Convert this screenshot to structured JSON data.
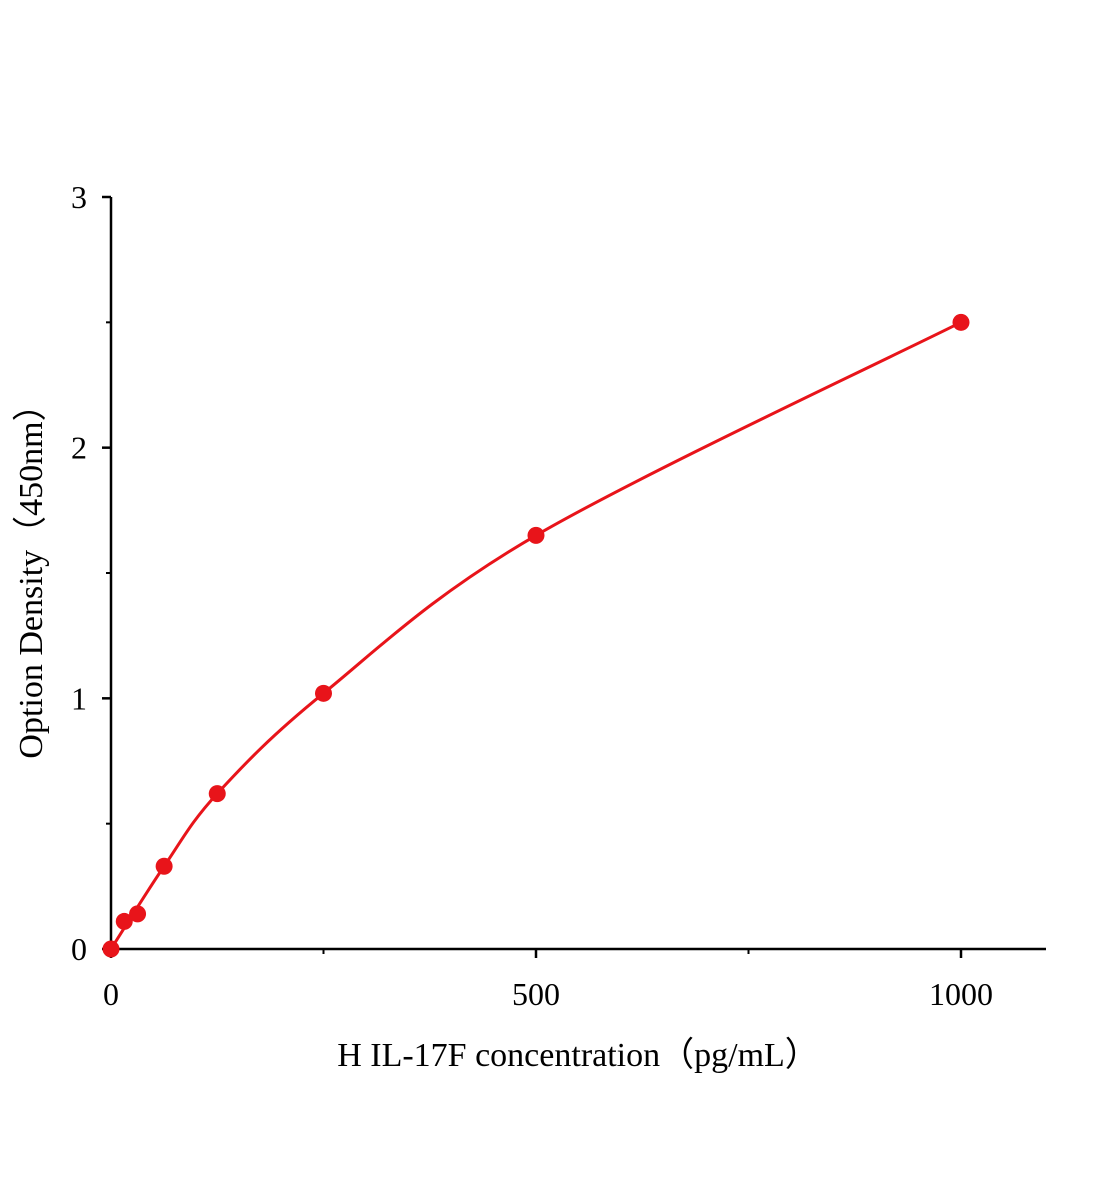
{
  "chart_data": {
    "type": "scatter",
    "title": "",
    "xlabel": "H IL-17F  concentration（pg/mL）",
    "ylabel": "Option Density（450nm）",
    "xlim": [
      0,
      1100
    ],
    "ylim": [
      0,
      3
    ],
    "x_ticks": [
      0,
      500,
      1000
    ],
    "x_minor_ticks": [
      250,
      750
    ],
    "y_ticks": [
      0,
      1,
      2,
      3
    ],
    "y_minor_ticks": [
      0.5,
      1.5,
      2.5
    ],
    "grid": false,
    "legend": "none",
    "colors": {
      "series": "#e8141a",
      "axis": "#000000"
    },
    "series": [
      {
        "x": [
          0,
          15.6,
          31.25,
          62.5,
          125,
          250,
          500,
          1000
        ],
        "y": [
          0,
          0.11,
          0.14,
          0.33,
          0.62,
          1.02,
          1.65,
          2.5
        ],
        "fit_curve": true
      }
    ]
  }
}
